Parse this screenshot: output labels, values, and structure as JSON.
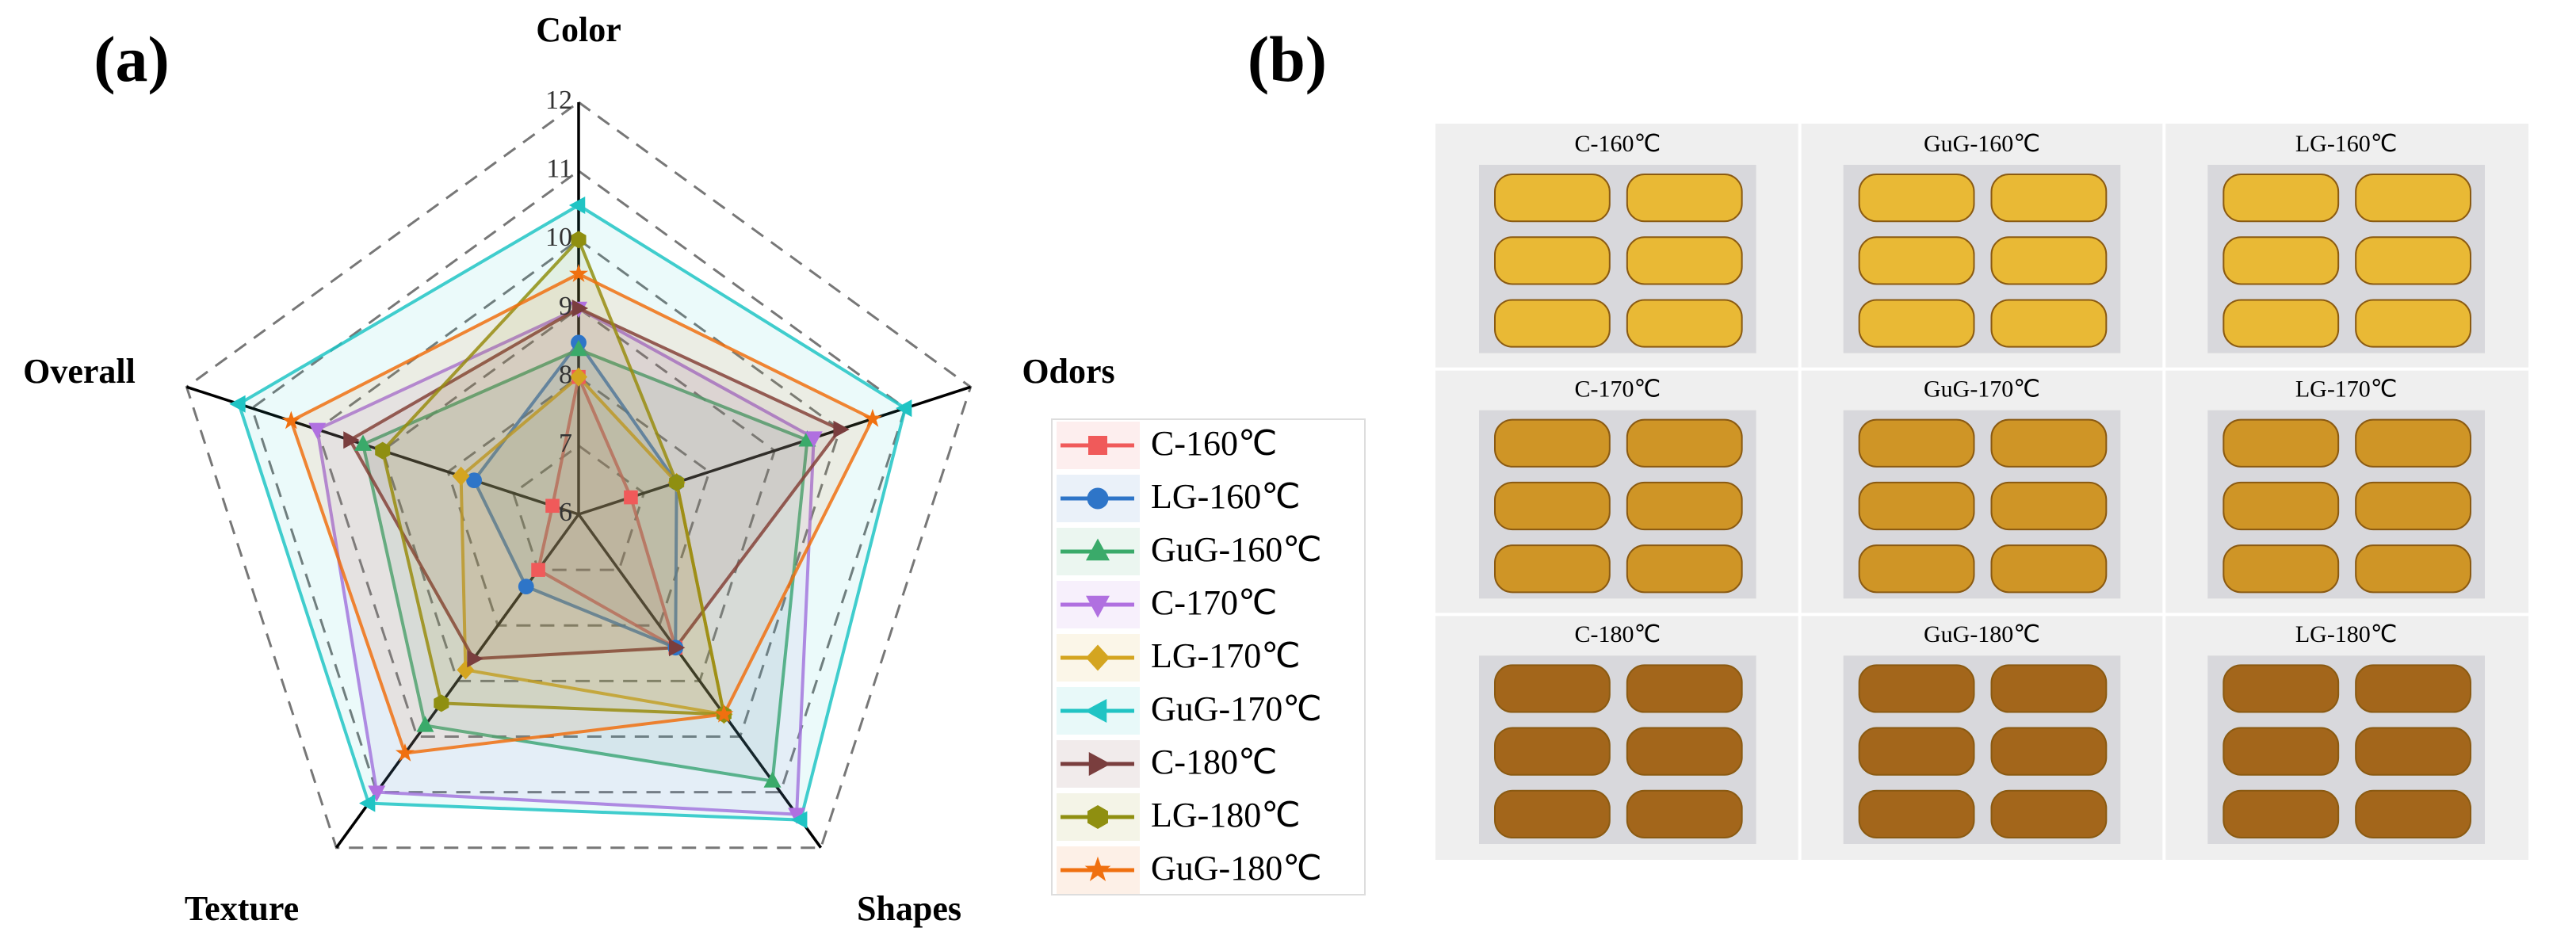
{
  "chart_data": {
    "type": "radar",
    "label": "(a)",
    "axes": [
      "Color",
      "Odors",
      "Shapes",
      "Texture",
      "Overall"
    ],
    "rlim": [
      6,
      12
    ],
    "rticks": [
      6,
      7,
      8,
      9,
      10,
      11,
      12
    ],
    "grid": true,
    "legend": "right",
    "series": [
      {
        "name": "C-160℃",
        "color": "#f05a5a",
        "marker": "square",
        "values": [
          8.0,
          6.8,
          8.4,
          7.0,
          6.4
        ]
      },
      {
        "name": "LG-160℃",
        "color": "#2e75c8",
        "marker": "circle",
        "values": [
          8.5,
          7.5,
          8.4,
          7.3,
          7.6
        ]
      },
      {
        "name": "GuG-160℃",
        "color": "#3aaa6a",
        "marker": "triangle-up",
        "values": [
          8.4,
          9.5,
          10.8,
          9.8,
          9.3
        ]
      },
      {
        "name": "C-170℃",
        "color": "#b070e0",
        "marker": "triangle-down",
        "values": [
          9.0,
          9.6,
          11.4,
          11.0,
          10.0
        ]
      },
      {
        "name": "LG-170℃",
        "color": "#d4a520",
        "marker": "diamond",
        "values": [
          8.0,
          7.5,
          9.6,
          8.8,
          7.8
        ]
      },
      {
        "name": "GuG-170℃",
        "color": "#20c4c4",
        "marker": "triangle-left",
        "values": [
          10.5,
          11.0,
          11.5,
          11.2,
          11.2
        ]
      },
      {
        "name": "C-180℃",
        "color": "#7a3e3e",
        "marker": "triangle-right",
        "values": [
          9.0,
          10.0,
          8.4,
          8.6,
          9.5
        ]
      },
      {
        "name": "LG-180℃",
        "color": "#8f8f10",
        "marker": "hexagon",
        "values": [
          10.0,
          7.5,
          9.6,
          9.4,
          9.0
        ]
      },
      {
        "name": "GuG-180℃",
        "color": "#f07010",
        "marker": "star",
        "values": [
          9.5,
          10.5,
          9.6,
          10.3,
          10.4
        ]
      }
    ]
  },
  "panel_b": {
    "label": "(b)",
    "images": [
      {
        "label": "C-160℃"
      },
      {
        "label": "GuG-160℃"
      },
      {
        "label": "LG-160℃"
      },
      {
        "label": "C-170℃"
      },
      {
        "label": "GuG-170℃"
      },
      {
        "label": "LG-170℃"
      },
      {
        "label": "C-180℃"
      },
      {
        "label": "GuG-180℃"
      },
      {
        "label": "LG-180℃"
      }
    ]
  }
}
